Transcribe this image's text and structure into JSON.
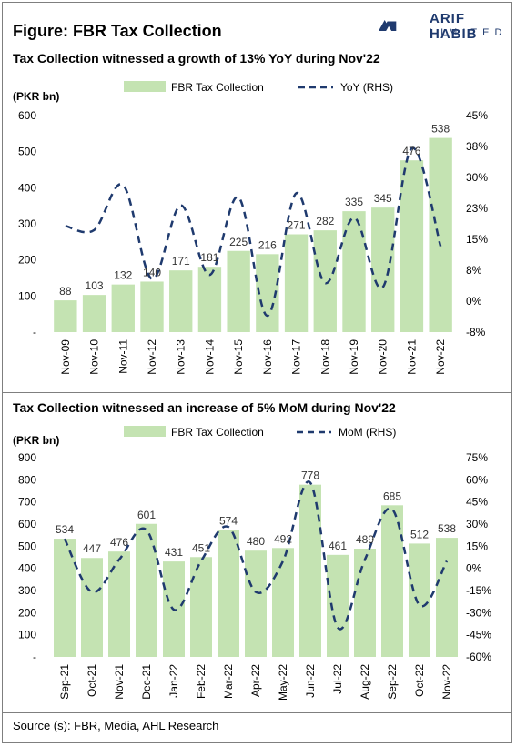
{
  "figure_title": "Figure: FBR Tax Collection",
  "logo": {
    "line1": "ARIF HABIB",
    "line2": "LIMITED"
  },
  "source": "Source (s): FBR, Media, AHL Research",
  "chart_data": [
    {
      "type": "bar",
      "title": "Tax Collection witnessed a growth of 13% YoY during Nov'22",
      "ylabel": "(PKR bn)",
      "categories": [
        "Nov-09",
        "Nov-10",
        "Nov-11",
        "Nov-12",
        "Nov-13",
        "Nov-14",
        "Nov-15",
        "Nov-16",
        "Nov-17",
        "Nov-18",
        "Nov-19",
        "Nov-20",
        "Nov-21",
        "Nov-22"
      ],
      "series": [
        {
          "name": "FBR Tax Collection",
          "type": "bar",
          "axis": "left",
          "values": [
            88,
            103,
            132,
            140,
            171,
            181,
            225,
            216,
            271,
            282,
            335,
            345,
            476,
            538
          ]
        },
        {
          "name": "YoY (RHS)",
          "type": "line",
          "axis": "right",
          "values": [
            18,
            17,
            28,
            5,
            23,
            6,
            25,
            -4,
            26,
            4,
            20,
            3,
            37,
            13
          ]
        }
      ],
      "ylim": [
        0,
        600
      ],
      "yticks": [
        "600",
        "500",
        "400",
        "300",
        "200",
        "100",
        "-"
      ],
      "y2lim": [
        -8,
        45
      ],
      "y2ticks": [
        "45%",
        "38%",
        "30%",
        "23%",
        "15%",
        "8%",
        "0%",
        "-8%"
      ],
      "legend": "top",
      "colors": {
        "bar": "#c4e3b2",
        "line": "#1f3a6e"
      }
    },
    {
      "type": "bar",
      "title": "Tax Collection witnessed an increase of 5% MoM during Nov'22",
      "ylabel": "(PKR bn)",
      "categories": [
        "Sep-21",
        "Oct-21",
        "Nov-21",
        "Dec-21",
        "Jan-22",
        "Feb-22",
        "Mar-22",
        "Apr-22",
        "May-22",
        "Jun-22",
        "Jul-22",
        "Aug-22",
        "Sep-22",
        "Oct-22",
        "Nov-22"
      ],
      "series": [
        {
          "name": "FBR Tax Collection",
          "type": "bar",
          "axis": "left",
          "values": [
            534,
            447,
            476,
            601,
            431,
            451,
            574,
            480,
            492,
            778,
            461,
            489,
            685,
            512,
            538
          ]
        },
        {
          "name": "MoM (RHS)",
          "type": "line",
          "axis": "right",
          "values": [
            20,
            -16,
            6,
            26,
            -28,
            5,
            28,
            -16,
            5,
            58,
            -40,
            6,
            40,
            -25,
            5
          ]
        }
      ],
      "ylim": [
        0,
        900
      ],
      "yticks": [
        "900",
        "800",
        "700",
        "600",
        "500",
        "400",
        "300",
        "200",
        "100",
        "-"
      ],
      "y2lim": [
        -60,
        75
      ],
      "y2ticks": [
        "75%",
        "60%",
        "45%",
        "30%",
        "15%",
        "0%",
        "-15%",
        "-30%",
        "-45%",
        "-60%"
      ],
      "legend": "top",
      "colors": {
        "bar": "#c4e3b2",
        "line": "#1f3a6e"
      }
    }
  ]
}
